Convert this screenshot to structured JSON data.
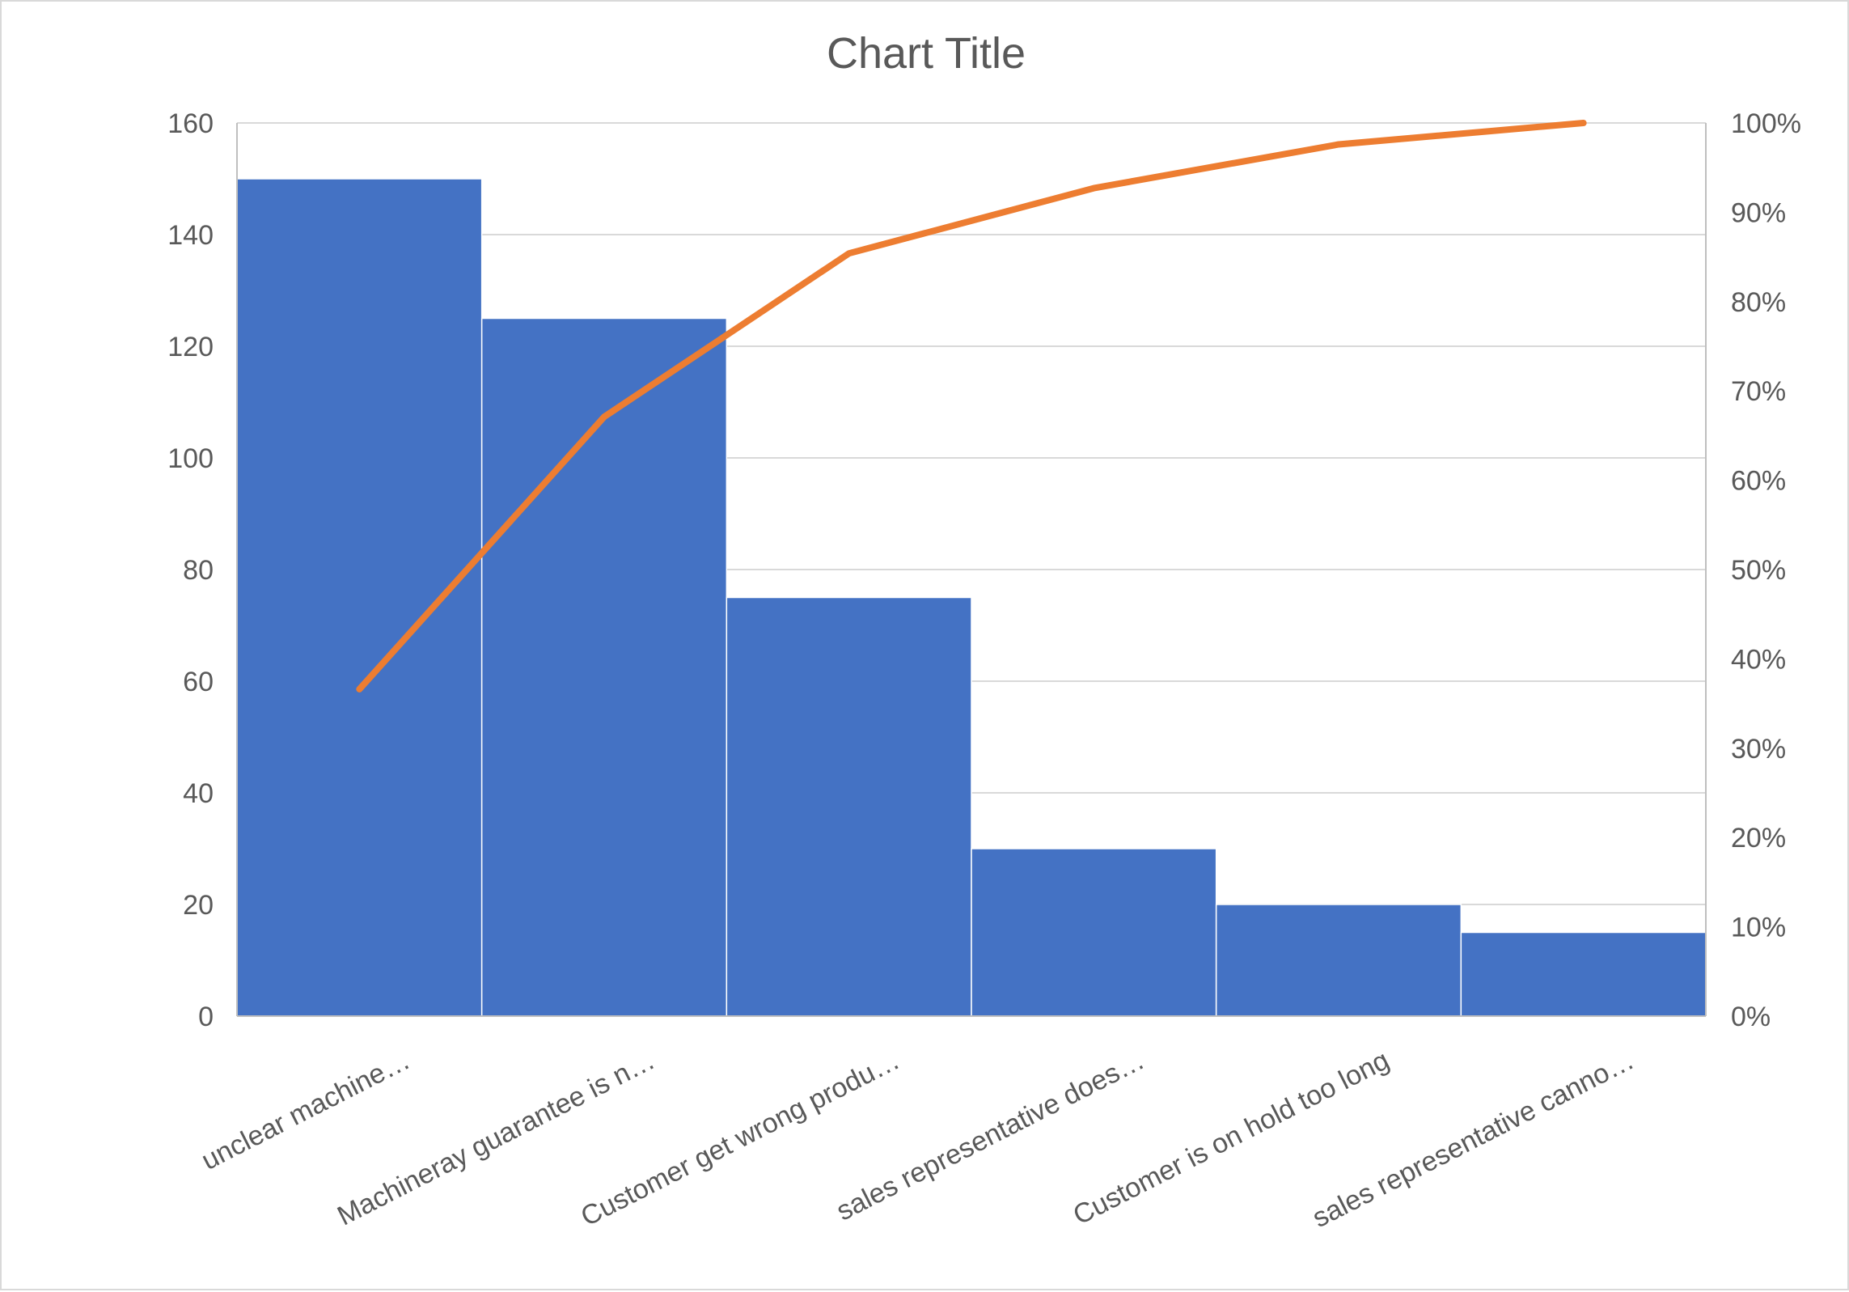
{
  "chart_data": {
    "type": "bar",
    "title": "Chart Title",
    "categories": [
      "unclear machine…",
      "Machineray guarantee is n…",
      "Customer get wrong produ…",
      "sales representative does…",
      "Customer is on hold too long",
      "sales representative canno…"
    ],
    "series": [
      {
        "type": "bar",
        "axis": "left",
        "values": [
          150,
          125,
          75,
          30,
          20,
          15
        ]
      },
      {
        "type": "line",
        "axis": "right",
        "values": [
          36.6,
          67.1,
          85.4,
          92.7,
          97.6,
          100
        ]
      }
    ],
    "y_left": {
      "min": 0,
      "max": 160,
      "step": 20,
      "ticks": [
        "0",
        "20",
        "40",
        "60",
        "80",
        "100",
        "120",
        "140",
        "160"
      ]
    },
    "y_right": {
      "min": 0,
      "max": 100,
      "step": 10,
      "ticks": [
        "0%",
        "10%",
        "20%",
        "30%",
        "40%",
        "50%",
        "60%",
        "70%",
        "80%",
        "90%",
        "100%"
      ]
    },
    "grid": true,
    "legend": "none",
    "colors": {
      "bar": "#4472C4",
      "line": "#ED7D31",
      "text": "#595959",
      "grid": "#D9D9D9"
    }
  }
}
